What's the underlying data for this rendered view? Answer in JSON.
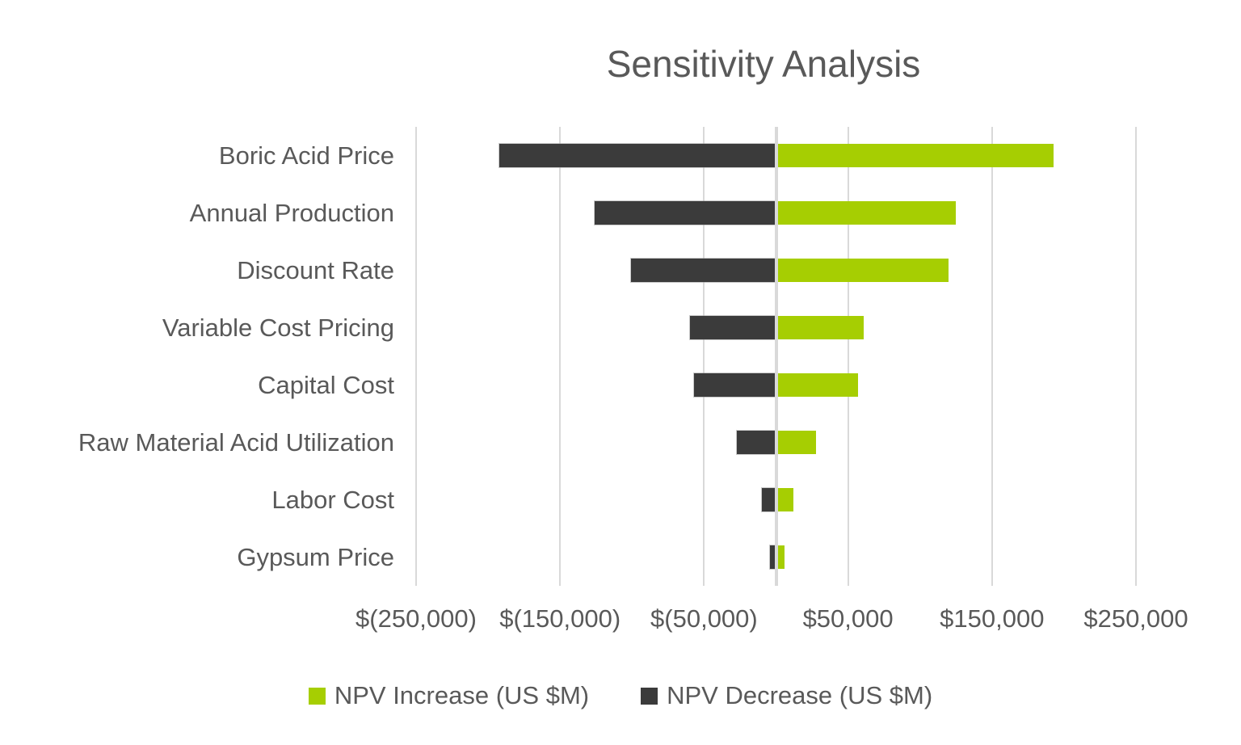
{
  "chart_data": {
    "type": "bar",
    "subtype": "tornado-horizontal",
    "title": "Sensitivity Analysis",
    "categories": [
      "Boric Acid Price",
      "Annual Production",
      "Discount Rate",
      "Variable Cost Pricing",
      "Capital Cost",
      "Raw Material Acid Utilization",
      "Labor Cost",
      "Gypsum Price"
    ],
    "series": [
      {
        "name": "NPV Increase (US $M)",
        "color": "#A6CE02",
        "values": [
          193000,
          125000,
          120000,
          61000,
          57000,
          28000,
          12000,
          6000
        ]
      },
      {
        "name": "NPV Decrease (US $M)",
        "color": "#3B3B3B",
        "values": [
          -192000,
          -126000,
          -101000,
          -60000,
          -57000,
          -27000,
          -10000,
          -4000
        ]
      }
    ],
    "x_ticks": [
      {
        "label": "$(250,000)",
        "value": -250000
      },
      {
        "label": "$(150,000)",
        "value": -150000
      },
      {
        "label": "$(50,000)",
        "value": -50000
      },
      {
        "label": "$50,000",
        "value": 50000
      },
      {
        "label": "$150,000",
        "value": 150000
      },
      {
        "label": "$250,000",
        "value": 250000
      }
    ],
    "xlim": [
      -250000,
      250000
    ],
    "grid": "vertical-major-only",
    "gridline_color": "#D9D9D9",
    "text_color": "#595959",
    "legend_position": "bottom",
    "xlabel": "",
    "ylabel": ""
  }
}
